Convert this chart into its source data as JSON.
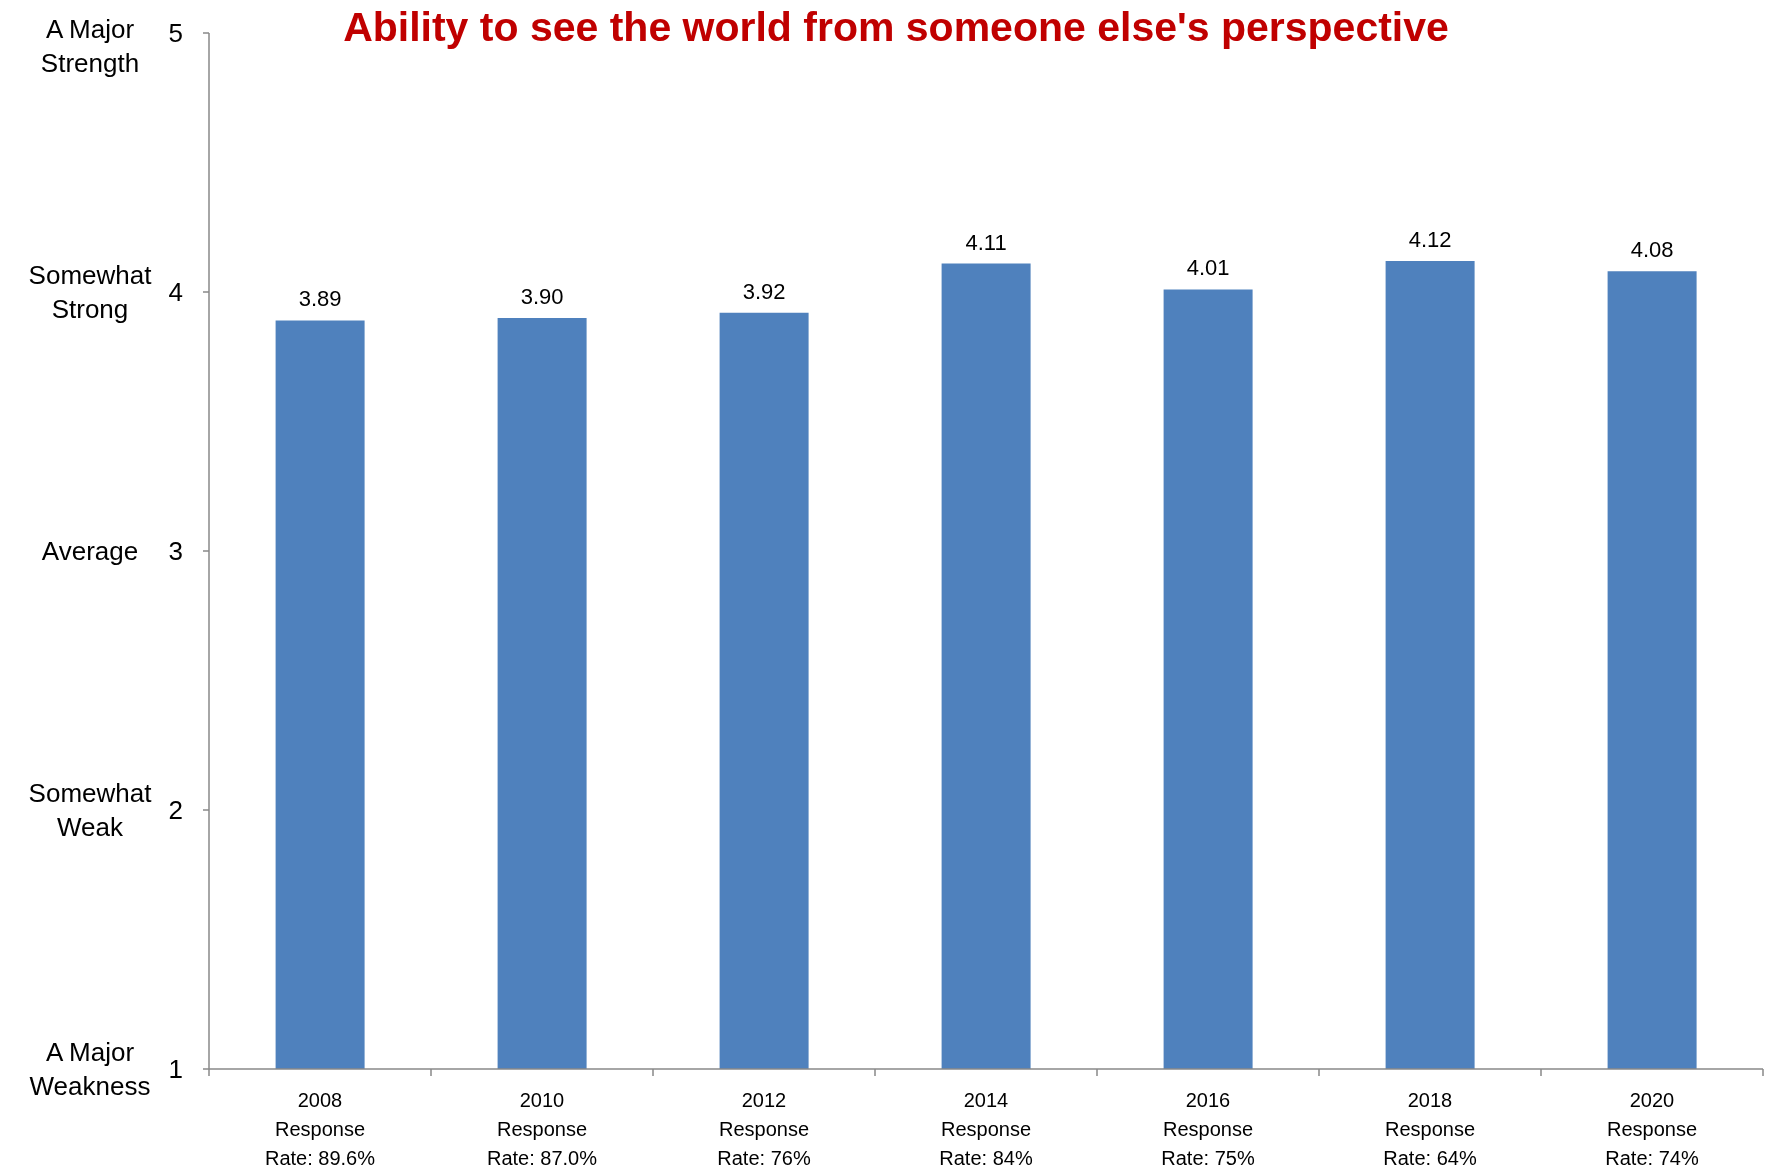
{
  "chart_data": {
    "type": "bar",
    "title": "Ability to see the world from someone else's perspective",
    "categories": [
      "2008\nResponse\nRate: 89.6%",
      "2010\nResponse\nRate: 87.0%",
      "2012\nResponse\nRate: 76%",
      "2014\nResponse\nRate: 84%",
      "2016\nResponse\nRate: 75%",
      "2018\nResponse\nRate: 64%",
      "2020\nResponse\nRate: 74%"
    ],
    "values": [
      3.89,
      3.9,
      3.92,
      4.11,
      4.01,
      4.12,
      4.08
    ],
    "value_labels": [
      "3.89",
      "3.90",
      "3.92",
      "4.11",
      "4.01",
      "4.12",
      "4.08"
    ],
    "color": "#4f81bd",
    "ylim": [
      1,
      5
    ],
    "yticks": [
      1,
      2,
      3,
      4,
      5
    ],
    "annotations": [
      "A Major Strength",
      "Somewhat Strong",
      "Average",
      "Somewhat Weak",
      "A Major Weakness"
    ]
  }
}
